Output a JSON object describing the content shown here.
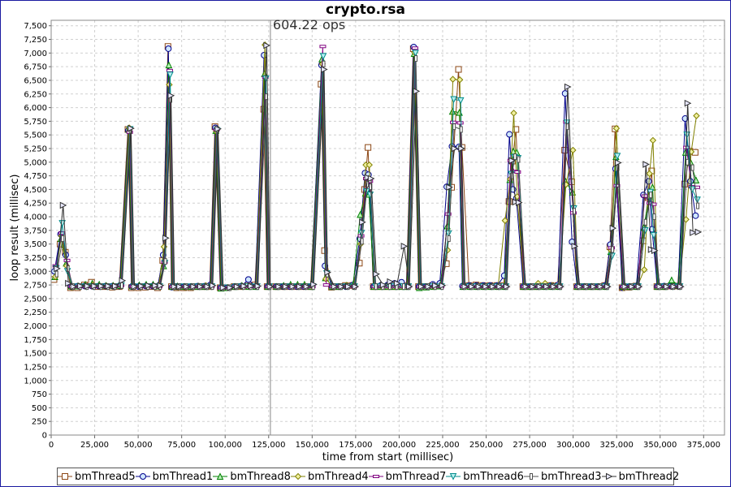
{
  "chart_data": {
    "type": "line",
    "title": "crypto.rsa",
    "annotation": "604.22 ops",
    "annotation_x": 126000,
    "xlabel": "time from start (millisec)",
    "ylabel": "loop result (millisec)",
    "xlim": [
      0,
      387000
    ],
    "ylim": [
      0,
      7600
    ],
    "x_ticks": [
      0,
      25000,
      50000,
      75000,
      100000,
      125000,
      150000,
      175000,
      200000,
      225000,
      250000,
      275000,
      300000,
      325000,
      350000,
      375000
    ],
    "x_tick_labels": [
      "0",
      "25,000",
      "50,000",
      "75,000",
      "100,000",
      "125,000",
      "150,000",
      "175,000",
      "200,000",
      "225,000",
      "250,000",
      "275,000",
      "300,000",
      "325,000",
      "350,000",
      "375,000"
    ],
    "y_ticks": [
      0,
      250,
      500,
      750,
      1000,
      1250,
      1500,
      1750,
      2000,
      2250,
      2500,
      2750,
      3000,
      3250,
      3500,
      3750,
      4000,
      4250,
      4500,
      4750,
      5000,
      5250,
      5500,
      5750,
      6000,
      6250,
      6500,
      6750,
      7000,
      7250,
      7500
    ],
    "y_tick_labels": [
      "0",
      "250",
      "500",
      "750",
      "1,000",
      "1,250",
      "1,500",
      "1,750",
      "2,000",
      "2,250",
      "2,500",
      "2,750",
      "3,000",
      "3,250",
      "3,500",
      "3,750",
      "4,000",
      "4,250",
      "4,500",
      "4,750",
      "5,000",
      "5,250",
      "5,500",
      "5,750",
      "6,000",
      "6,250",
      "6,500",
      "6,750",
      "7,000",
      "7,250",
      "7,500"
    ],
    "grid": true,
    "legend_position": "bottom",
    "base_x": [
      2500,
      6000,
      9000,
      12000,
      16000,
      20000,
      24000,
      28000,
      32000,
      36000,
      40000,
      45000,
      47000,
      51000,
      55000,
      59000,
      62000,
      65000,
      68000,
      70000,
      73000,
      77000,
      81000,
      85000,
      89000,
      92000,
      95000,
      98000,
      102000,
      106000,
      110000,
      114000,
      118000,
      123000,
      125000,
      130000,
      134000,
      138000,
      142000,
      146000,
      150000,
      156000,
      158000,
      162000,
      166000,
      170000,
      174000,
      178000,
      181000,
      183000,
      186000,
      190000,
      194000,
      198000,
      202000,
      205000,
      209000,
      212000,
      216000,
      220000,
      224000,
      228000,
      231000,
      235000,
      237000,
      241000,
      245000,
      249000,
      253000,
      257000,
      261000,
      264000,
      266000,
      268000,
      272000,
      276000,
      280000,
      284000,
      288000,
      292000,
      296000,
      300000,
      303000,
      307000,
      311000,
      315000,
      319000,
      322000,
      325000,
      329000,
      333000,
      337000,
      341000,
      344000,
      346000,
      349000,
      353000,
      357000,
      361000,
      365000,
      368000,
      371000
    ],
    "series": [
      {
        "name": "bmThread5",
        "color": "#8b4513",
        "marker": "square",
        "values": [
          2850,
          3500,
          3350,
          2700,
          2700,
          2750,
          2800,
          2720,
          2720,
          2710,
          2720,
          5600,
          2700,
          2700,
          2710,
          2720,
          2700,
          3200,
          7120,
          2720,
          2700,
          2700,
          2700,
          2720,
          2720,
          2720,
          5650,
          2700,
          2700,
          2720,
          2720,
          2730,
          2750,
          5970,
          2720,
          2720,
          2720,
          2720,
          2720,
          2720,
          2720,
          6430,
          3380,
          2710,
          2720,
          2740,
          2740,
          3150,
          4500,
          5270,
          2720,
          2720,
          2720,
          2720,
          2730,
          2740,
          7080,
          2720,
          2720,
          2740,
          2730,
          3140,
          4540,
          6700,
          5270,
          2740,
          2750,
          2740,
          2740,
          2740,
          2740,
          4280,
          5020,
          5600,
          2720,
          2720,
          2720,
          2730,
          2740,
          2740,
          5220,
          4640,
          2720,
          2720,
          2720,
          2720,
          2740,
          3450,
          5610,
          2700,
          2710,
          2730,
          3560,
          4350,
          4840,
          2720,
          2720,
          2730,
          2730,
          4600,
          5200,
          5180
        ]
      },
      {
        "name": "bmThread1",
        "color": "#00008b",
        "marker": "circle",
        "values": [
          3000,
          3680,
          3300,
          2720,
          2730,
          2730,
          2730,
          2730,
          2730,
          2730,
          2730,
          5580,
          2720,
          2720,
          2730,
          2730,
          2730,
          3300,
          7080,
          2710,
          2720,
          2720,
          2720,
          2730,
          2730,
          2750,
          5630,
          2700,
          2700,
          2720,
          2730,
          2850,
          2720,
          6960,
          2720,
          2720,
          2720,
          2720,
          2720,
          2720,
          2720,
          6780,
          3100,
          2720,
          2720,
          2720,
          2750,
          3600,
          4800,
          4770,
          2720,
          2740,
          2750,
          2780,
          2800,
          2720,
          7110,
          2720,
          2720,
          2760,
          2780,
          4550,
          5290,
          5280,
          2730,
          2740,
          2740,
          2740,
          2740,
          2740,
          2920,
          5510,
          4500,
          4340,
          2720,
          2720,
          2740,
          2740,
          2740,
          2750,
          6260,
          3540,
          2720,
          2720,
          2720,
          2720,
          2740,
          3490,
          4880,
          2700,
          2720,
          2730,
          4400,
          4650,
          3770,
          2720,
          2730,
          2730,
          2730,
          5800,
          4650,
          4020
        ]
      },
      {
        "name": "bmThread8",
        "color": "#008000",
        "marker": "triangle",
        "values": [
          2900,
          3600,
          3150,
          2730,
          2730,
          2760,
          2780,
          2760,
          2740,
          2740,
          2740,
          5600,
          2730,
          2750,
          2760,
          2760,
          2730,
          3100,
          6780,
          2720,
          2730,
          2720,
          2720,
          2720,
          2720,
          2740,
          5580,
          2690,
          2700,
          2720,
          2740,
          2720,
          2720,
          6620,
          2720,
          2720,
          2740,
          2760,
          2760,
          2760,
          2720,
          6890,
          2880,
          2720,
          2720,
          2740,
          2760,
          4040,
          4430,
          4410,
          2720,
          2720,
          2720,
          2720,
          2720,
          2720,
          6990,
          2700,
          2710,
          2720,
          2730,
          3830,
          5930,
          5910,
          2720,
          2720,
          2720,
          2720,
          2720,
          2720,
          2720,
          4680,
          5200,
          5180,
          2720,
          2720,
          2720,
          2720,
          2720,
          2720,
          4650,
          4450,
          2720,
          2720,
          2720,
          2720,
          2720,
          3360,
          5100,
          2720,
          2720,
          2720,
          3800,
          4380,
          4540,
          2720,
          2720,
          2840,
          2740,
          5180,
          4990,
          4670
        ]
      },
      {
        "name": "bmThread4",
        "color": "#808000",
        "marker": "diamond",
        "values": [
          2900,
          3650,
          3100,
          2710,
          2730,
          2730,
          2750,
          2730,
          2730,
          2730,
          2740,
          5630,
          2720,
          2720,
          2730,
          2730,
          2730,
          3450,
          6420,
          2720,
          2710,
          2710,
          2720,
          2730,
          2740,
          2740,
          5570,
          2700,
          2700,
          2720,
          2720,
          2720,
          2740,
          7150,
          2720,
          2720,
          2720,
          2730,
          2730,
          2730,
          2720,
          6800,
          2860,
          2720,
          2720,
          2740,
          2720,
          3500,
          4950,
          4950,
          2720,
          2720,
          2720,
          2720,
          2720,
          2720,
          7010,
          2720,
          2720,
          2720,
          2740,
          3390,
          6520,
          6510,
          2720,
          2720,
          2720,
          2720,
          2720,
          2720,
          3930,
          4690,
          5900,
          4370,
          2720,
          2720,
          2780,
          2780,
          2740,
          2740,
          4590,
          5220,
          2720,
          2720,
          2720,
          2720,
          2720,
          3380,
          5620,
          2700,
          2720,
          2720,
          3030,
          4790,
          5400,
          2720,
          2720,
          2720,
          2720,
          3950,
          5190,
          5850
        ]
      },
      {
        "name": "bmThread7",
        "color": "#800080",
        "marker": "hbar",
        "values": [
          3100,
          3700,
          3200,
          2720,
          2720,
          2720,
          2720,
          2720,
          2720,
          2720,
          2740,
          5550,
          2720,
          2720,
          2720,
          2720,
          2720,
          3170,
          6680,
          2720,
          2720,
          2720,
          2720,
          2720,
          2720,
          2720,
          5600,
          2700,
          2700,
          2720,
          2720,
          2720,
          2720,
          6560,
          2720,
          2720,
          2720,
          2720,
          2720,
          2720,
          2720,
          7120,
          2750,
          2720,
          2720,
          2720,
          2720,
          3650,
          4700,
          4650,
          2720,
          2720,
          2720,
          2720,
          2720,
          2720,
          7090,
          2720,
          2720,
          2720,
          2720,
          4050,
          5730,
          5720,
          2720,
          2720,
          2720,
          2720,
          2720,
          2720,
          2720,
          5030,
          4830,
          4820,
          2720,
          2720,
          2720,
          2720,
          2720,
          2720,
          5740,
          4070,
          2720,
          2720,
          2720,
          2720,
          2720,
          3430,
          4570,
          2720,
          2720,
          2720,
          4380,
          4250,
          4230,
          2720,
          2720,
          2720,
          2720,
          5270,
          4550,
          4540
        ]
      },
      {
        "name": "bmThread6",
        "color": "#008b8b",
        "marker": "triangle-down",
        "values": [
          3050,
          3880,
          3000,
          2720,
          2720,
          2720,
          2720,
          2720,
          2720,
          2720,
          2740,
          5600,
          2720,
          2720,
          2720,
          2720,
          2720,
          3150,
          6600,
          2720,
          2720,
          2720,
          2720,
          2720,
          2720,
          2720,
          5580,
          2700,
          2700,
          2720,
          2720,
          2720,
          2720,
          6530,
          2720,
          2720,
          2720,
          2720,
          2720,
          2720,
          2720,
          6940,
          2960,
          2720,
          2720,
          2720,
          2720,
          3700,
          4460,
          4400,
          2720,
          2720,
          2720,
          2720,
          2720,
          2720,
          7000,
          2720,
          2720,
          2720,
          2720,
          3690,
          6150,
          6130,
          2720,
          2720,
          2720,
          2720,
          2720,
          2720,
          2720,
          4780,
          5090,
          5070,
          2720,
          2720,
          2720,
          2720,
          2720,
          2720,
          5720,
          4150,
          2720,
          2720,
          2720,
          2720,
          2720,
          3280,
          5110,
          2720,
          2720,
          2720,
          3750,
          4450,
          3660,
          2720,
          2720,
          2720,
          2720,
          5500,
          4500,
          4310
        ]
      },
      {
        "name": "bmThread3",
        "color": "#505050",
        "marker": "vbar",
        "values": [
          2950,
          3600,
          3050,
          2720,
          2720,
          2720,
          2720,
          2720,
          2720,
          2720,
          2740,
          5580,
          2720,
          2720,
          2720,
          2720,
          2720,
          3180,
          6150,
          2720,
          2720,
          2720,
          2720,
          2720,
          2720,
          2720,
          5600,
          2700,
          2700,
          2720,
          2720,
          2720,
          2720,
          6200,
          2720,
          2720,
          2720,
          2720,
          2720,
          2720,
          2720,
          6800,
          2950,
          2720,
          2720,
          2720,
          2720,
          3550,
          4600,
          4550,
          2720,
          2720,
          2720,
          2720,
          2720,
          2720,
          6900,
          2720,
          2720,
          2720,
          2720,
          3600,
          5650,
          5600,
          2720,
          2720,
          2720,
          2720,
          2720,
          2720,
          2720,
          4750,
          5100,
          5050,
          2720,
          2720,
          2720,
          2720,
          2720,
          2720,
          5650,
          4100,
          2720,
          2720,
          2720,
          2720,
          2720,
          3400,
          4900,
          2720,
          2720,
          2720,
          3900,
          4400,
          4000,
          2720,
          2720,
          2720,
          2720,
          5000,
          4900,
          4200
        ]
      },
      {
        "name": "bmThread2",
        "color": "#303030",
        "marker": "triangle-right",
        "values": [
          3050,
          4210,
          2780,
          2720,
          2730,
          2730,
          2730,
          2730,
          2730,
          2730,
          2830,
          5620,
          2720,
          2730,
          2740,
          2740,
          2740,
          3610,
          6220,
          2720,
          2720,
          2720,
          2720,
          2720,
          2720,
          2740,
          5610,
          2700,
          2700,
          2720,
          2730,
          2730,
          2730,
          7140,
          2720,
          2720,
          2720,
          2720,
          2720,
          2720,
          2760,
          6700,
          2980,
          2720,
          2720,
          2720,
          2720,
          3900,
          4720,
          4700,
          2950,
          2750,
          2810,
          2780,
          3460,
          2720,
          6300,
          2720,
          2720,
          2740,
          2740,
          4540,
          5250,
          5250,
          2720,
          2720,
          2720,
          2720,
          2720,
          2720,
          2720,
          5030,
          4270,
          4260,
          2720,
          2720,
          2720,
          2720,
          2720,
          2720,
          6380,
          3460,
          2720,
          2720,
          2720,
          2720,
          2720,
          3790,
          4990,
          2720,
          2720,
          2720,
          4960,
          3400,
          3380,
          2720,
          2720,
          2720,
          2720,
          6080,
          3710,
          3720
        ]
      }
    ]
  }
}
